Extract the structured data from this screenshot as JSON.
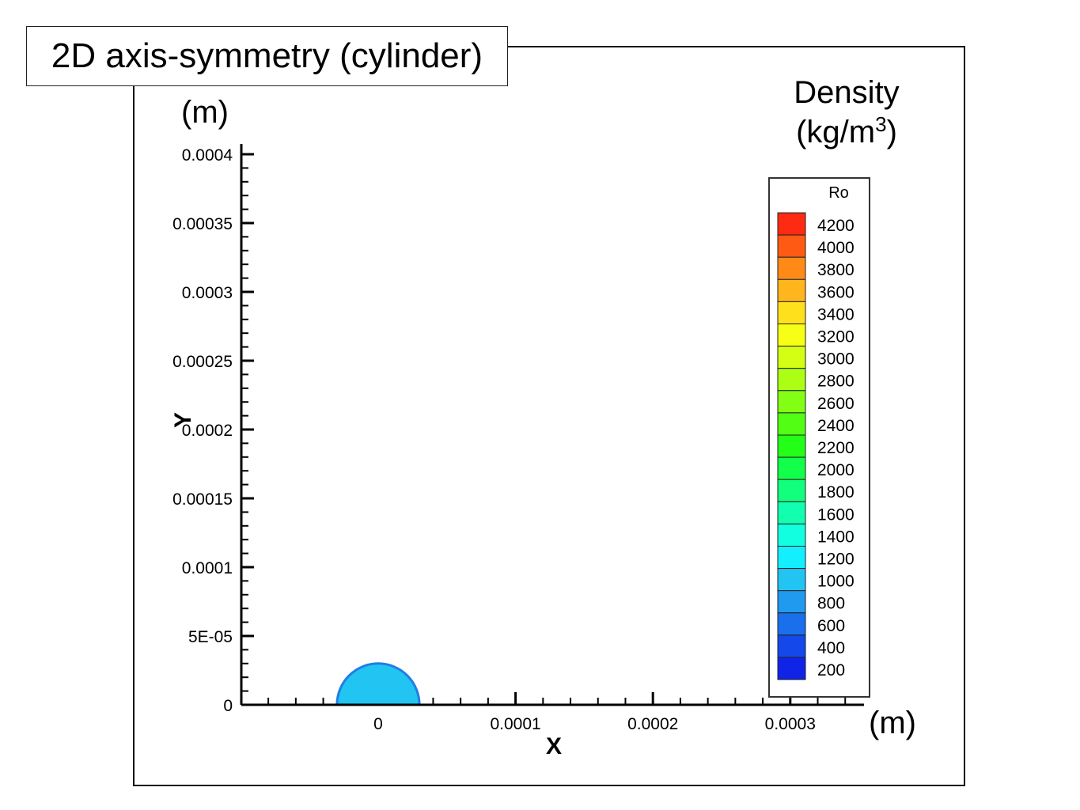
{
  "page": {
    "title_box": "2D axis-symmetry (cylinder)",
    "y_unit": "(m)",
    "x_unit": "(m)",
    "legend_heading_line1": "Density",
    "legend_heading_line2_pre": "(kg/m",
    "legend_heading_sup": "3",
    "legend_heading_line2_post": ")"
  },
  "chart_data": {
    "type": "contour",
    "title": "2D axis-symmetry (cylinder)",
    "xlabel": "X",
    "ylabel": "Y",
    "xlim": [
      -0.0001,
      0.00035
    ],
    "ylim": [
      0,
      0.0004
    ],
    "x_ticks": [
      {
        "value": 0,
        "label": "0"
      },
      {
        "value": 0.0001,
        "label": "0.0001"
      },
      {
        "value": 0.0002,
        "label": "0.0002"
      },
      {
        "value": 0.0003,
        "label": "0.0003"
      }
    ],
    "y_ticks": [
      {
        "value": 0,
        "label": "0"
      },
      {
        "value": 5e-05,
        "label": "5E-05"
      },
      {
        "value": 0.0001,
        "label": "0.0001"
      },
      {
        "value": 0.00015,
        "label": "0.00015"
      },
      {
        "value": 0.0002,
        "label": "0.0002"
      },
      {
        "value": 0.00025,
        "label": "0.00025"
      },
      {
        "value": 0.0003,
        "label": "0.0003"
      },
      {
        "value": 0.00035,
        "label": "0.00035"
      },
      {
        "value": 0.0004,
        "label": "0.0004"
      }
    ],
    "droplet": {
      "center_x": 0,
      "center_y": 0,
      "radius": 3e-05,
      "fill_color": "#22c4f2",
      "edge_color": "#1f7ee6"
    },
    "legend": {
      "title": "Ro",
      "placement": "right",
      "levels": [
        {
          "value": 4200,
          "color": "#ff2a12"
        },
        {
          "value": 4000,
          "color": "#ff5a14"
        },
        {
          "value": 3800,
          "color": "#ff8a18"
        },
        {
          "value": 3600,
          "color": "#ffb51c"
        },
        {
          "value": 3400,
          "color": "#ffe01c"
        },
        {
          "value": 3200,
          "color": "#f7ff16"
        },
        {
          "value": 3000,
          "color": "#d4ff14"
        },
        {
          "value": 2800,
          "color": "#acff14"
        },
        {
          "value": 2600,
          "color": "#82ff14"
        },
        {
          "value": 2400,
          "color": "#52ff14"
        },
        {
          "value": 2200,
          "color": "#24ff18"
        },
        {
          "value": 2000,
          "color": "#12ff4a"
        },
        {
          "value": 1800,
          "color": "#12ff7e"
        },
        {
          "value": 1600,
          "color": "#12ffb0"
        },
        {
          "value": 1400,
          "color": "#12ffe0"
        },
        {
          "value": 1200,
          "color": "#14efff"
        },
        {
          "value": 1000,
          "color": "#22c4f2"
        },
        {
          "value": 800,
          "color": "#1f9aee"
        },
        {
          "value": 600,
          "color": "#1a70ec"
        },
        {
          "value": 400,
          "color": "#1548ea"
        },
        {
          "value": 200,
          "color": "#1024e8"
        }
      ]
    }
  }
}
